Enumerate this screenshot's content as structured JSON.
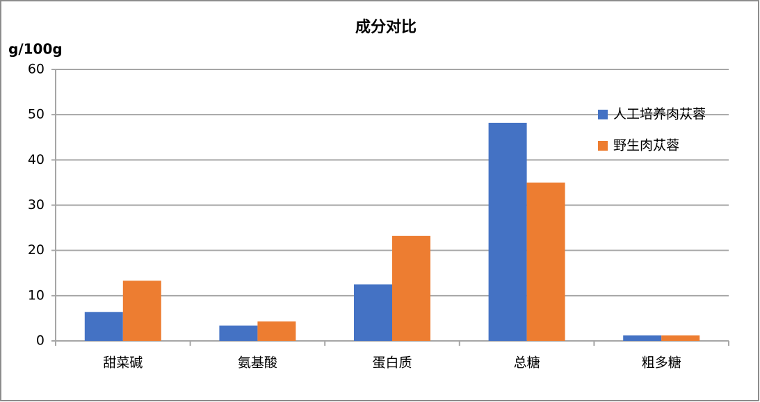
{
  "chart_data": {
    "type": "bar",
    "title": "成分对比",
    "y_label": "g/100g",
    "categories": [
      "甜菜碱",
      "氨基酸",
      "蛋白质",
      "总糖",
      "粗多糖"
    ],
    "series": [
      {
        "name": "人工培养肉苁蓉",
        "color": "#4472c4",
        "values": [
          6.4,
          3.4,
          12.5,
          48.2,
          1.2
        ]
      },
      {
        "name": "野生肉苁蓉",
        "color": "#ed7d31",
        "values": [
          13.3,
          4.3,
          23.2,
          35.0,
          1.2
        ]
      }
    ],
    "ylim": [
      0,
      60
    ],
    "yticks": [
      0,
      10,
      20,
      30,
      40,
      50,
      60
    ],
    "grid": true,
    "legend": "right"
  }
}
